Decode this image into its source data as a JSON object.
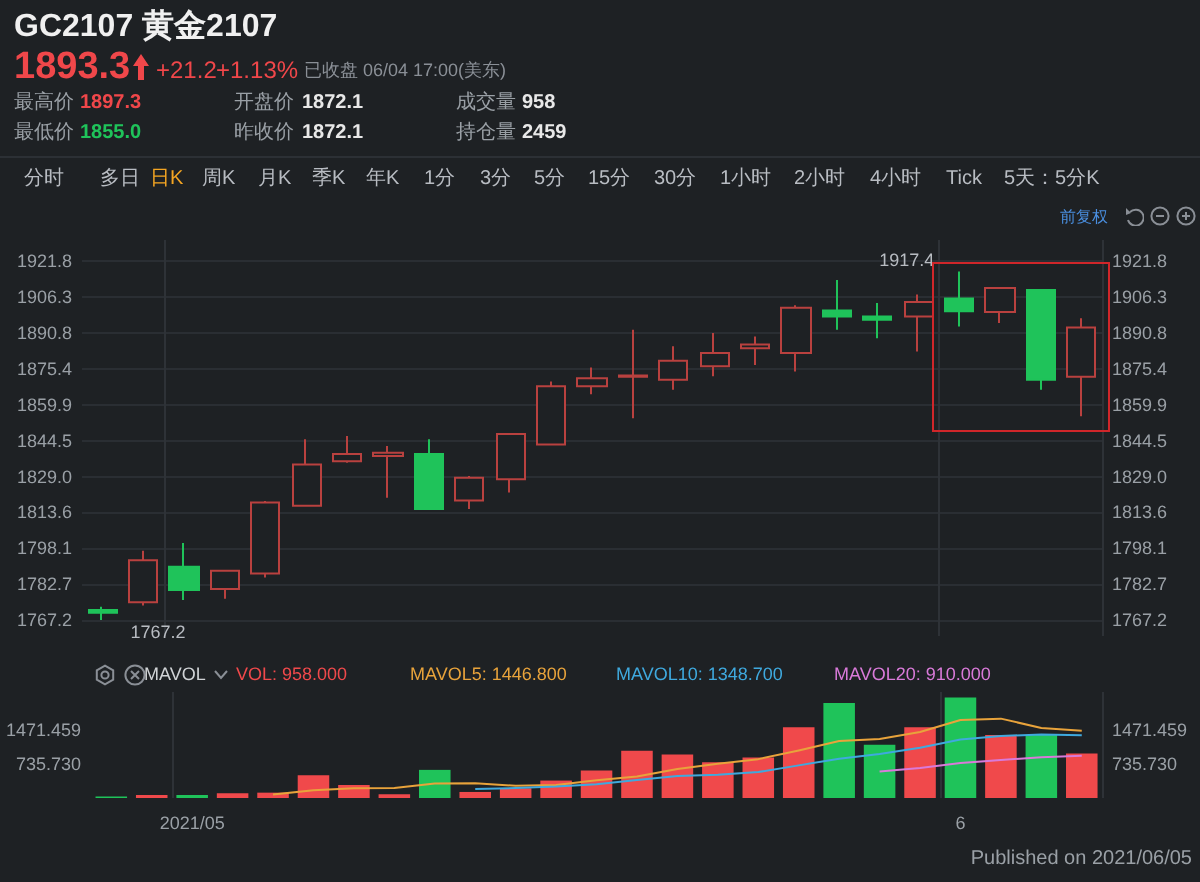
{
  "chart_data": [
    {
      "type": "other",
      "title": "GC2107 黄金2107",
      "annotations": [
        "1893.3",
        "+21.2",
        "+1.13%",
        "已收盘 06/04 17:00(美东)",
        "最高价",
        "1897.3",
        "最低价",
        "1855.0",
        "开盘价",
        "1872.1",
        "昨收价",
        "1872.1",
        "成交量",
        "958",
        "持仓量",
        "2459",
        "分时",
        "多日",
        "日K",
        "周K",
        "月K",
        "季K",
        "年K",
        "1分",
        "3分",
        "5分",
        "15分",
        "30分",
        "1小时",
        "2小时",
        "4小时",
        "Tick",
        "5天：5分K",
        "前复权"
      ]
    },
    {
      "type": "candlestick",
      "categories": [
        null,
        null,
        "2021/05",
        null,
        null,
        null,
        null,
        null,
        null,
        null,
        null,
        null,
        null,
        null,
        null,
        null,
        null,
        null,
        null,
        null,
        null,
        "6",
        null,
        null,
        null
      ],
      "ohlc": [
        [
          1771.5,
          1772.9,
          1767.2,
          1770.3
        ],
        [
          1774.9,
          1797.0,
          1773.5,
          1793.0
        ],
        [
          1790.1,
          1800.4,
          1775.8,
          1780.1
        ],
        [
          1780.6,
          1788.8,
          1776.4,
          1788.4
        ],
        [
          1787.2,
          1818.5,
          1785.5,
          1817.9
        ],
        [
          1816.4,
          1845.1,
          1816.4,
          1834.2
        ],
        [
          1835.6,
          1846.5,
          1835.0,
          1838.8
        ],
        [
          1837.9,
          1842.2,
          1819.9,
          1839.3
        ],
        [
          1838.8,
          1845.1,
          1815.0,
          1815.0
        ],
        [
          1818.7,
          1829.3,
          1815.0,
          1828.5
        ],
        [
          1827.9,
          1847.4,
          1822.2,
          1847.4
        ],
        [
          1842.8,
          1870.0,
          1842.8,
          1868.0
        ],
        [
          1868.0,
          1876.0,
          1864.5,
          1871.4
        ],
        [
          1872.0,
          1892.3,
          1854.2,
          1872.6
        ],
        [
          1870.8,
          1885.2,
          1866.5,
          1878.9
        ],
        [
          1876.6,
          1890.9,
          1872.3,
          1882.3
        ],
        [
          1884.3,
          1889.4,
          1877.1,
          1886.0
        ],
        [
          1882.3,
          1902.9,
          1874.3,
          1901.8
        ],
        [
          1900.6,
          1913.8,
          1892.3,
          1898.0
        ],
        [
          1898.0,
          1903.8,
          1888.6,
          1896.6
        ],
        [
          1898.0,
          1907.5,
          1882.9,
          1904.3
        ],
        [
          1905.8,
          1917.4,
          1893.7,
          1900.3
        ],
        [
          1900.0,
          1910.3,
          1895.2,
          1910.3
        ],
        [
          1909.5,
          1909.5,
          1866.5,
          1870.8
        ],
        [
          1872.1,
          1897.3,
          1855.0,
          1893.3
        ]
      ],
      "colors": [
        "#1fc35a",
        "#b9413f",
        "#1fc35a",
        "#b9413f",
        "#b9413f",
        "#b9413f",
        "#b9413f",
        "#b9413f",
        "#1fc35a",
        "#b9413f",
        "#b9413f",
        "#b9413f",
        "#b9413f",
        "#b9413f",
        "#b9413f",
        "#b9413f",
        "#b9413f",
        "#b9413f",
        "#1fc35a",
        "#1fc35a",
        "#b9413f",
        "#1fc35a",
        "#b9413f",
        "#1fc35a",
        "#b9413f"
      ],
      "ylim": [
        1760.3,
        1931
      ],
      "yticks": [
        1767.2,
        1782.7,
        1798.1,
        1813.6,
        {
          "value": 1829,
          "label": "1829.0"
        },
        1844.5,
        1859.9,
        1875.4,
        1890.8,
        1906.3,
        1921.8
      ],
      "y2lim": [
        1760.3,
        1931
      ],
      "y2ticks": [
        1767.2,
        1782.7,
        1798.1,
        1813.6,
        {
          "value": 1829,
          "label": "1829.0"
        },
        1844.5,
        1859.9,
        1875.4,
        1890.8,
        1906.3,
        1921.8
      ],
      "grid": true,
      "tick_labels": "y",
      "annotations": [
        "1767.2",
        "1917.4"
      ]
    },
    {
      "type": "bar",
      "categories": [
        null,
        null,
        "2021/05",
        null,
        null,
        null,
        null,
        null,
        null,
        null,
        null,
        null,
        null,
        null,
        null,
        null,
        null,
        null,
        null,
        null,
        null,
        "6",
        null,
        null,
        null
      ],
      "legend_title": "MAVOL",
      "legend": "top",
      "marker": "none",
      "grid": "x",
      "series": [
        {
          "name": "VOL: 958.000",
          "type": "bar",
          "color": "#f0494b",
          "colors": [
            "#1fc35a",
            "#f0494b",
            "#1fc35a",
            "#f0494b",
            "#f0494b",
            "#f0494b",
            "#f0494b",
            "#f0494b",
            "#1fc35a",
            "#f0494b",
            "#f0494b",
            "#f0494b",
            "#f0494b",
            "#f0494b",
            "#f0494b",
            "#f0494b",
            "#f0494b",
            "#f0494b",
            "#1fc35a",
            "#1fc35a",
            "#f0494b",
            "#1fc35a",
            "#f0494b",
            "#1fc35a",
            "#f0494b"
          ],
          "values": [
            30,
            65,
            65,
            100,
            115,
            490,
            280,
            80,
            605,
            130,
            210,
            375,
            590,
            1015,
            935,
            770,
            870,
            1520,
            2045,
            1145,
            1520,
            2160,
            1355,
            1355,
            958
          ]
        },
        {
          "name": "MAVOL5: 1446.800",
          "type": "line",
          "color": "#e8a33b",
          "values": [
            null,
            null,
            null,
            null,
            75,
            167,
            210,
            213,
            314,
            317,
            261,
            280,
            382,
            464,
            625,
            737,
            836,
            1022,
            1228,
            1270,
            1420,
            1678,
            1707,
            1507,
            1446.8
          ]
        },
        {
          "name": "MAVOL10: 1348.700",
          "type": "line",
          "color": "#3fa9de",
          "values": [
            null,
            null,
            null,
            null,
            null,
            null,
            null,
            null,
            null,
            196,
            214,
            245,
            298,
            389,
            471,
            499,
            558,
            702,
            846,
            948,
            1079,
            1257,
            1334,
            1368,
            1348.7
          ]
        },
        {
          "name": "MAVOL20: 910.000",
          "type": "line",
          "color": "#d97ad9",
          "values": [
            null,
            null,
            null,
            null,
            null,
            null,
            null,
            null,
            null,
            null,
            null,
            null,
            null,
            null,
            null,
            null,
            null,
            null,
            null,
            572,
            646,
            751,
            816,
            878,
            910
          ]
        }
      ],
      "ylim": [
        0,
        2280
      ],
      "yticks": [
        {
          "value": 735.73,
          "label": "735.730"
        },
        {
          "value": 1471.459,
          "label": "1471.459"
        }
      ],
      "y2lim": [
        0,
        2280
      ],
      "y2ticks": [
        {
          "value": 735.73,
          "label": "735.730"
        },
        {
          "value": 1471.459,
          "label": "1471.459"
        }
      ],
      "annotations": [
        "Published on 2021/06/05"
      ]
    }
  ]
}
